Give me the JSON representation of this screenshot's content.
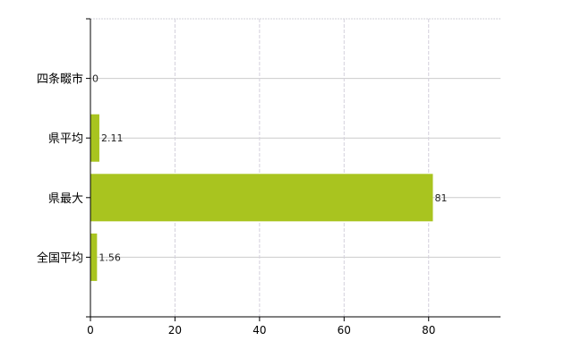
{
  "chart_data": {
    "type": "bar",
    "orientation": "horizontal",
    "categories": [
      "四条畷市",
      "県平均",
      "県最大",
      "全国平均"
    ],
    "values": [
      0,
      2.11,
      81,
      1.56
    ],
    "data_labels": [
      "0",
      "2.11",
      "81",
      "1.56"
    ],
    "title": "",
    "xlabel": "",
    "ylabel": "",
    "xlim": [
      0,
      97
    ],
    "xticks": [
      0,
      20,
      40,
      60,
      80
    ],
    "xtick_labels": [
      "0",
      "20",
      "40",
      "60",
      "80"
    ],
    "grid": true,
    "bar_color": "#a9c41f"
  }
}
